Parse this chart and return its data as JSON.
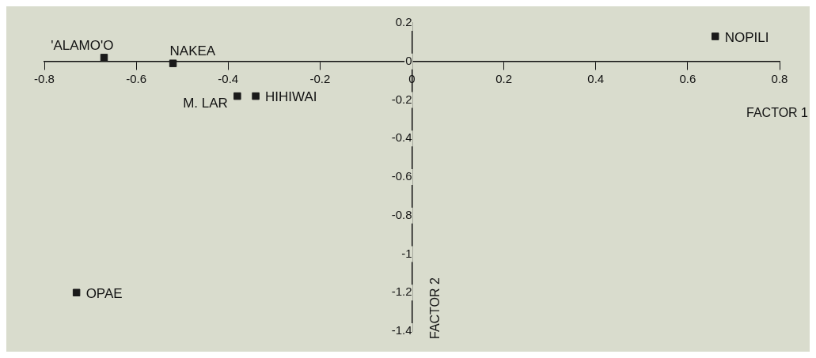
{
  "chart_data": {
    "type": "scatter",
    "xlabel": "FACTOR 1",
    "ylabel": "FACTOR 2",
    "x": [
      -0.67,
      -0.52,
      -0.38,
      -0.34,
      0.66,
      -0.73
    ],
    "series": [
      {
        "color": "#1a1a1a",
        "values": [
          0.02,
          -0.01,
          -0.18,
          -0.18,
          0.13,
          -1.2
        ]
      }
    ],
    "xlim": [
      -0.8,
      0.8
    ],
    "xticks": [
      -0.8,
      -0.6,
      -0.4,
      -0.2,
      0,
      0.2,
      0.4,
      0.6,
      0.8
    ],
    "ylim": [
      -1.4,
      0.2
    ],
    "yticks": [
      -1.4,
      -1.2,
      -1,
      -0.8,
      -0.6,
      -0.4,
      -0.2,
      0,
      0.2
    ],
    "marker": "square",
    "grid": false,
    "legend": false,
    "annotations": [
      {
        "text": "'ALAMO'O",
        "x": -0.67,
        "y": 0.02
      },
      {
        "text": "NAKEA",
        "x": -0.52,
        "y": -0.01
      },
      {
        "text": "M. LAR",
        "x": -0.38,
        "y": -0.18
      },
      {
        "text": "HIHIWAI",
        "x": -0.34,
        "y": -0.18
      },
      {
        "text": "NOPILI",
        "x": 0.66,
        "y": 0.13
      },
      {
        "text": "OPAE",
        "x": -0.73,
        "y": -1.2
      }
    ]
  }
}
